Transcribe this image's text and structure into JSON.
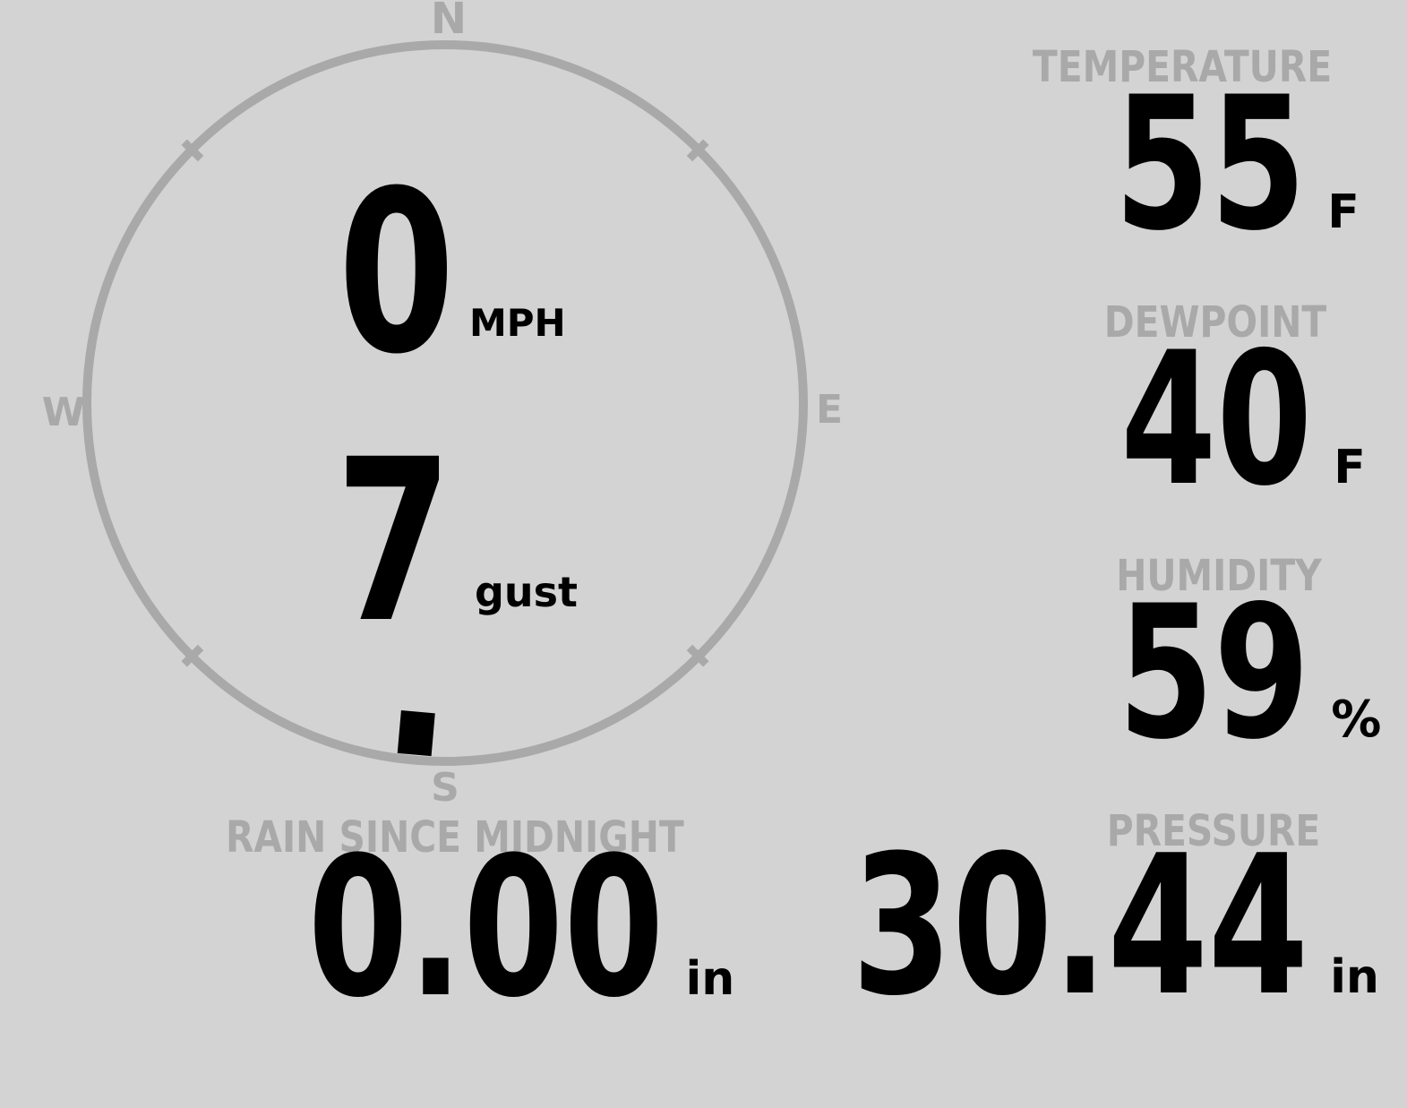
{
  "colors": {
    "background": "#d3d3d3",
    "muted": "#a9a9a9",
    "ink": "#000000"
  },
  "wind": {
    "speed_value": "0",
    "speed_unit": "MPH",
    "gust_value": "7",
    "gust_label": "gust",
    "direction_deg": 185,
    "compass": {
      "north": "N",
      "east": "E",
      "south": "S",
      "west": "W"
    }
  },
  "metrics": {
    "temperature": {
      "label": "TEMPERATURE",
      "value": "55",
      "unit": "F"
    },
    "dewpoint": {
      "label": "DEWPOINT",
      "value": "40",
      "unit": "F"
    },
    "humidity": {
      "label": "HUMIDITY",
      "value": "59",
      "unit": "%"
    },
    "rain": {
      "label": "RAIN SINCE MIDNIGHT",
      "value": "0.00",
      "unit": "in"
    },
    "pressure": {
      "label": "PRESSURE",
      "value": "30.44",
      "unit": "in"
    }
  }
}
